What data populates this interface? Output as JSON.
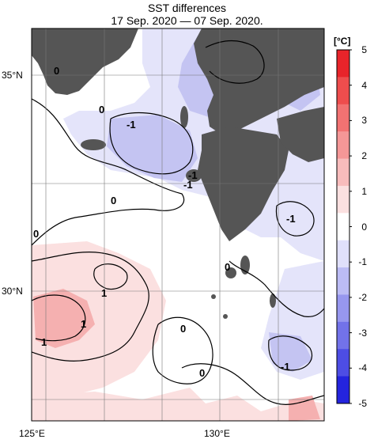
{
  "title": {
    "line1": "SST differences",
    "line2": "17 Sep. 2020 — 07 Sep. 2020."
  },
  "axes": {
    "lat_labels": [
      "35°N",
      "30°N"
    ],
    "lon_labels": [
      "125°E",
      "130°E"
    ]
  },
  "colorbar": {
    "unit": "[°C]",
    "ticks": [
      "5",
      "4",
      "3",
      "2",
      "1",
      "0",
      "-1",
      "-2",
      "-3",
      "-4",
      "-5"
    ],
    "colors": [
      "#e8242a",
      "#ee4d4d",
      "#f27272",
      "#f59797",
      "#f8bcbc",
      "#fbe0e0",
      "#ffffff",
      "#e0e0fb",
      "#bcbcf5",
      "#9797ef",
      "#7272e9",
      "#4d4de4",
      "#2424de"
    ]
  },
  "contour_labels": [
    "0",
    "0",
    "-1",
    "-1",
    "-1",
    "0",
    "0",
    "-1",
    "0",
    "1",
    "1",
    "1",
    "0",
    "0",
    "-1"
  ],
  "colors": {
    "land": "#555555",
    "warm_light": "#fbe0e0",
    "warm_mid": "#f5b0b0",
    "cool_light": "#e4e4fa",
    "cool_mid": "#c4c4f2",
    "cool_dark": "#9a9ae8"
  }
}
